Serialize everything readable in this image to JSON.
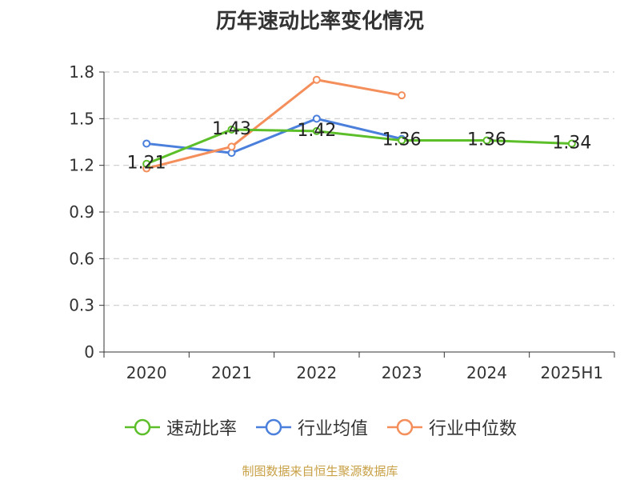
{
  "title": "历年速动比率变化情况",
  "source": "制图数据来自恒生聚源数据库",
  "chart_data": {
    "type": "line",
    "title": "历年速动比率变化情况",
    "categories": [
      "2020",
      "2021",
      "2022",
      "2023",
      "2024",
      "2025H1"
    ],
    "ylim": [
      0,
      1.8
    ],
    "yticks": [
      "0",
      "0.3",
      "0.6",
      "0.9",
      "1.2",
      "1.5",
      "1.8"
    ],
    "grid": true,
    "legend_position": "bottom",
    "series": [
      {
        "name": "速动比率",
        "color": "#5cbf2a",
        "values": [
          1.21,
          1.43,
          1.42,
          1.36,
          1.36,
          1.34
        ],
        "labels": [
          "1.21",
          "1.43",
          "1.42",
          "1.36",
          "1.36",
          "1.34"
        ]
      },
      {
        "name": "行业均值",
        "color": "#4a7fdc",
        "values": [
          1.34,
          1.28,
          1.5,
          1.37,
          null,
          null
        ],
        "labels": []
      },
      {
        "name": "行业中位数",
        "color": "#f48e5a",
        "values": [
          1.18,
          1.32,
          1.75,
          1.65,
          null,
          null
        ],
        "labels": []
      }
    ]
  }
}
